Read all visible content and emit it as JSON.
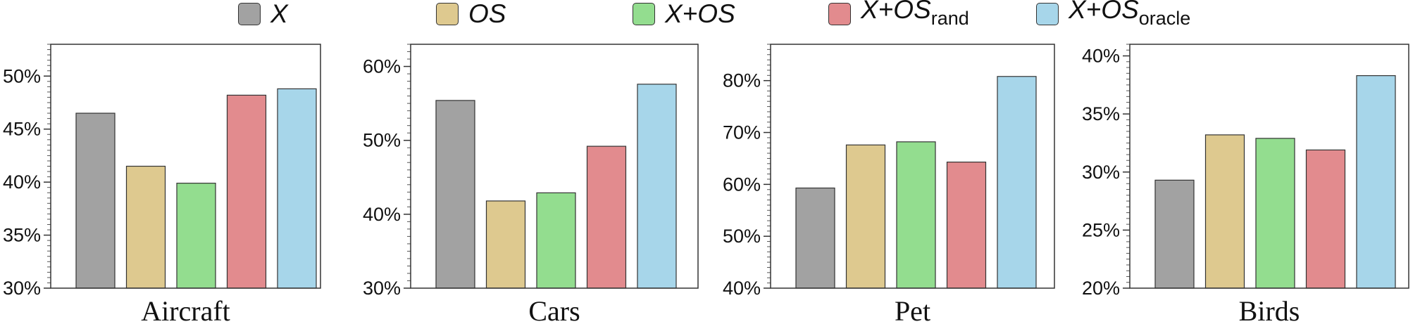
{
  "legend": {
    "items": [
      {
        "main": "X",
        "sub": "",
        "color": "#a2a2a2"
      },
      {
        "main": "OS",
        "sub": "",
        "color": "#dec98f"
      },
      {
        "main": "X+OS",
        "sub": "",
        "color": "#93dd8f"
      },
      {
        "main": "X+OS",
        "sub": "rand",
        "color": "#e28b8e"
      },
      {
        "main": "X+OS",
        "sub": "oracle",
        "color": "#a7d6ea"
      }
    ]
  },
  "chart_data": [
    {
      "type": "bar",
      "title": "Aircraft",
      "categories": [
        "X",
        "OS",
        "X+OS",
        "X+OSrand",
        "X+OSoracle"
      ],
      "values": [
        46.5,
        41.5,
        39.9,
        48.2,
        48.8
      ],
      "ylim": [
        30,
        53
      ],
      "yticks": [
        30,
        35,
        40,
        45,
        50
      ],
      "ytick_labels": [
        "30%",
        "35%",
        "40%",
        "45%",
        "50%"
      ]
    },
    {
      "type": "bar",
      "title": "Cars",
      "categories": [
        "X",
        "OS",
        "X+OS",
        "X+OSrand",
        "X+OSoracle"
      ],
      "values": [
        55.4,
        41.8,
        42.9,
        49.2,
        57.6
      ],
      "ylim": [
        30,
        63
      ],
      "yticks": [
        30,
        40,
        50,
        60
      ],
      "ytick_labels": [
        "30%",
        "40%",
        "50%",
        "60%"
      ]
    },
    {
      "type": "bar",
      "title": "Pet",
      "categories": [
        "X",
        "OS",
        "X+OS",
        "X+OSrand",
        "X+OSoracle"
      ],
      "values": [
        59.3,
        67.6,
        68.2,
        64.3,
        80.8
      ],
      "ylim": [
        40,
        87
      ],
      "yticks": [
        40,
        50,
        60,
        70,
        80
      ],
      "ytick_labels": [
        "40%",
        "50%",
        "60%",
        "70%",
        "80%"
      ]
    },
    {
      "type": "bar",
      "title": "Birds",
      "categories": [
        "X",
        "OS",
        "X+OS",
        "X+OSrand",
        "X+OSoracle"
      ],
      "values": [
        29.3,
        33.2,
        32.9,
        31.9,
        38.3
      ],
      "ylim": [
        20,
        41
      ],
      "yticks": [
        20,
        25,
        30,
        35,
        40
      ],
      "ytick_labels": [
        "20%",
        "25%",
        "30%",
        "35%",
        "40%"
      ]
    }
  ]
}
